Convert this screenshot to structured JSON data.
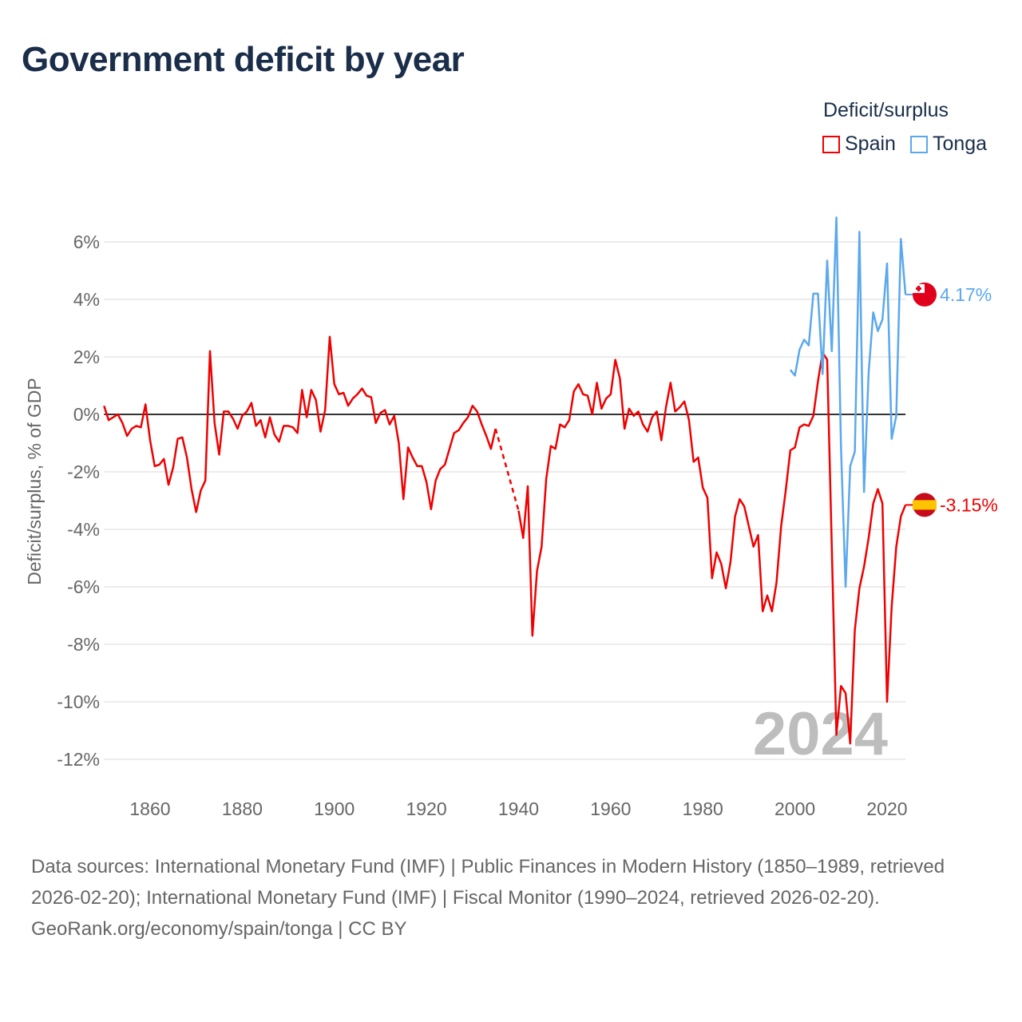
{
  "title": "Government deficit by year",
  "legend": {
    "title": "Deficit/surplus",
    "items": [
      {
        "label": "Spain",
        "color": "#f00000"
      },
      {
        "label": "Tonga",
        "color": "#5ba8ec"
      }
    ]
  },
  "source": {
    "line1": "Data sources: International Monetary Fund (IMF) | Public Finances in Modern History (1850–1989, retrieved 2026-02-20); International Monetary Fund (IMF) | Fiscal Monitor (1990–2024, retrieved 2026-02-20).",
    "line2": "GeoRank.org/economy/spain/tonga | CC BY"
  },
  "chart_data": {
    "type": "line",
    "title": "Government deficit by year",
    "xlabel": "",
    "ylabel": "Deficit/surplus, % of GDP",
    "xlim": [
      1850,
      2024
    ],
    "ylim": [
      -12,
      6
    ],
    "year_watermark": "2024",
    "x_ticks": [
      1860,
      1880,
      1900,
      1920,
      1940,
      1960,
      1980,
      2000,
      2020
    ],
    "y_ticks": [
      6,
      4,
      2,
      0,
      -2,
      -4,
      -6,
      -8,
      -10,
      -12
    ],
    "y_tick_labels": [
      "6%",
      "4%",
      "2%",
      "0%",
      "-2%",
      "-4%",
      "-6%",
      "-8%",
      "-10%",
      "-12%"
    ],
    "x_tick_labels": [
      "1860",
      "1880",
      "1900",
      "1920",
      "1940",
      "1960",
      "1980",
      "2000",
      "2020"
    ],
    "series": [
      {
        "name": "Spain",
        "color": "#f00000",
        "start_year": 1850,
        "end_label": "-3.15%",
        "values": [
          0.3,
          -0.2,
          -0.1,
          0,
          -0.3,
          -0.75,
          -0.5,
          -0.4,
          -0.45,
          0.35,
          -0.9,
          -1.8,
          -1.75,
          -1.55,
          -2.45,
          -1.85,
          -0.85,
          -0.8,
          -1.5,
          -2.6,
          -3.4,
          -2.65,
          -2.3,
          2.2,
          -0.3,
          -1.4,
          0.1,
          0.1,
          -0.15,
          -0.5,
          -0.05,
          0.1,
          0.4,
          -0.4,
          -0.2,
          -0.8,
          -0.1,
          -0.7,
          -0.95,
          -0.4,
          -0.4,
          -0.45,
          -0.65,
          0.85,
          -0.1,
          0.85,
          0.5,
          -0.6,
          0.15,
          2.7,
          1.05,
          0.7,
          0.75,
          0.3,
          0.55,
          0.7,
          0.9,
          0.65,
          0.6,
          -0.3,
          0.05,
          0.15,
          -0.35,
          -0.05,
          -1.0,
          -2.95,
          -1.15,
          -1.5,
          -1.8,
          -1.8,
          -2.35,
          -3.3,
          -2.3,
          -1.9,
          -1.75,
          -1.2,
          -0.65,
          -0.55,
          -0.3,
          -0.1,
          0.3,
          0.1,
          -0.35,
          -0.75,
          -1.2,
          -0.5,
          null,
          null,
          null,
          null,
          -3.35,
          -4.3,
          -2.5,
          -7.7,
          -5.45,
          -4.6,
          -2.25,
          -1.1,
          -1.2,
          -0.35,
          -0.45,
          -0.2,
          0.8,
          1.05,
          0.7,
          0.65,
          0,
          1.1,
          0.2,
          0.55,
          0.7,
          1.9,
          1.25,
          -0.5,
          0.2,
          -0.05,
          0.1,
          -0.35,
          -0.6,
          -0.1,
          0.1,
          -0.9,
          0.25,
          1.1,
          0.1,
          0.25,
          0.45,
          -0.2,
          -1.65,
          -1.5,
          -2.55,
          -2.9,
          -5.7,
          -4.8,
          -5.2,
          -6.05,
          -5.15,
          -3.55,
          -2.95,
          -3.2,
          -3.9,
          -4.6,
          -4.2,
          -6.85,
          -6.3,
          -6.85,
          -5.85,
          -3.9,
          -2.65,
          -1.25,
          -1.15,
          -0.45,
          -0.35,
          -0.4,
          -0.05,
          1.15,
          2.15,
          1.9,
          -4.6,
          -11.15,
          -9.45,
          -9.7,
          -11.45,
          -7.5,
          -6.05,
          -5.3,
          -4.3,
          -3.1,
          -2.6,
          -3.1,
          -10.0,
          -6.7,
          -4.6,
          -3.55,
          -3.15
        ]
      },
      {
        "name": "Tonga",
        "color": "#5ba8ec",
        "start_year": 1999,
        "end_label": "4.17%",
        "values": [
          1.55,
          1.35,
          2.25,
          2.6,
          2.4,
          4.2,
          4.2,
          1.4,
          5.35,
          2.2,
          6.85,
          -1.15,
          -6.0,
          -1.8,
          -1.3,
          6.35,
          -2.7,
          1.45,
          3.55,
          2.9,
          3.3,
          5.25,
          -0.85,
          -0.05,
          6.1,
          4.17
        ]
      }
    ]
  }
}
